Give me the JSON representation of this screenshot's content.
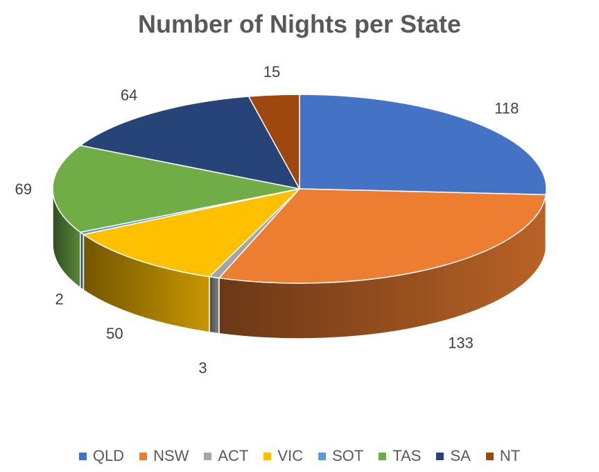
{
  "chart_data": {
    "type": "pie",
    "title": "Number of Nights per State",
    "categories": [
      "QLD",
      "NSW",
      "ACT",
      "VIC",
      "SOT",
      "TAS",
      "SA",
      "NT"
    ],
    "values": [
      118,
      133,
      3,
      50,
      2,
      69,
      64,
      15
    ],
    "colors": [
      "#4472C4",
      "#ED7D31",
      "#A5A5A5",
      "#FFC000",
      "#5B9BD5",
      "#70AD47",
      "#264478",
      "#9E480E"
    ],
    "legend_position": "bottom",
    "style": "3d-pie"
  }
}
